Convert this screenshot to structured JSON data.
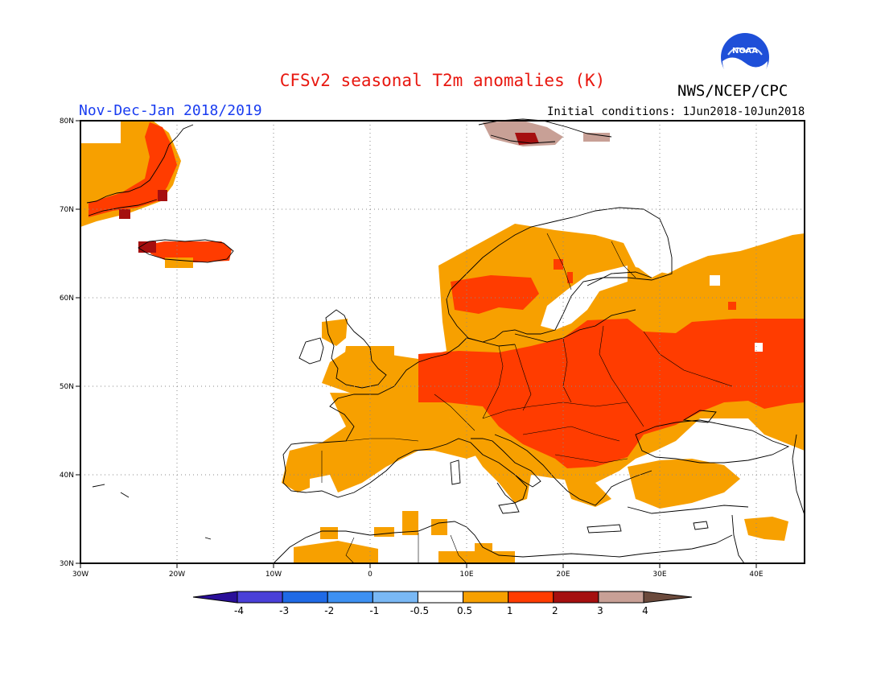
{
  "header": {
    "title": "CFSv2 seasonal T2m anomalies (K)",
    "org": "NWS/NCEP/CPC",
    "logo_text": "NOAA",
    "season": "Nov-Dec-Jan 2018/2019",
    "initial_conditions": "Initial conditions: 1Jun2018-10Jun2018"
  },
  "map": {
    "lon_range": [
      -30,
      45
    ],
    "lat_range": [
      30,
      80
    ],
    "lat_labels": [
      {
        "lat": 80,
        "label": "80N"
      },
      {
        "lat": 70,
        "label": "70N"
      },
      {
        "lat": 60,
        "label": "60N"
      },
      {
        "lat": 50,
        "label": "50N"
      },
      {
        "lat": 40,
        "label": "40N"
      },
      {
        "lat": 30,
        "label": "30N"
      }
    ],
    "lon_labels": [
      {
        "lon": -30,
        "label": "30W"
      },
      {
        "lon": -20,
        "label": "20W"
      },
      {
        "lon": -10,
        "label": "10W"
      },
      {
        "lon": 0,
        "label": "0"
      },
      {
        "lon": 10,
        "label": "10E"
      },
      {
        "lon": 20,
        "label": "20E"
      },
      {
        "lon": 30,
        "label": "30E"
      },
      {
        "lon": 40,
        "label": "40E"
      }
    ],
    "anomaly_colors": {
      "0.5-1": "#f7a000",
      "1-2": "#ff3c00",
      "2-3": "#a50f0f",
      "3-4": "#c8a096"
    }
  },
  "colorbar": {
    "colors": [
      "#2a0f99",
      "#4a40d8",
      "#1f6ae6",
      "#3d90f2",
      "#79b8f5",
      "#ffffff",
      "#f7a000",
      "#ff3c00",
      "#a50f0f",
      "#c8a096",
      "#6b4a3c"
    ],
    "labels": [
      "-4",
      "-3",
      "-2",
      "-1",
      "-0.5",
      "0.5",
      "1",
      "2",
      "3",
      "4"
    ]
  }
}
